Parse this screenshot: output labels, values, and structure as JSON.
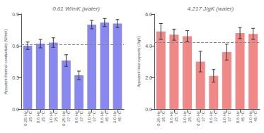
{
  "chart_data": [
    {
      "type": "bar",
      "title": "0.61 W/mK (water)",
      "ylabel": "Apparent thermal conductivity (W/mK)",
      "categories": [
        "0.25 Hz\n25 °C",
        "0.6 Hz\n25 °C",
        "3.0 Hz\n25 °C",
        "0.25 Hz\n37 °C",
        "0.6 Hz\n37 °C",
        "3.0 Hz\n37 °C",
        "0.6 Hz\n45 °C",
        "3.0 Hz\n45 °C"
      ],
      "values": [
        0.6,
        0.62,
        0.63,
        0.46,
        0.32,
        0.8,
        0.82,
        0.81
      ],
      "errors": [
        0.035,
        0.04,
        0.045,
        0.055,
        0.04,
        0.04,
        0.038,
        0.038
      ],
      "reference_line": 0.61,
      "color": "#8888ee",
      "ylim": [
        0.0,
        0.9
      ],
      "yticks": [
        {
          "value": 0.0,
          "label": "0.0"
        },
        0.3,
        0.6,
        0.9
      ],
      "grid": false
    },
    {
      "type": "bar",
      "title": "4.217 J/gK (water)",
      "ylabel": "Apparent heat capacity (J/gK)",
      "categories": [
        "0.25 Hz\n25 °C",
        "0.6 Hz\n25 °C",
        "3.0 Hz\n25 °C",
        "0.25 Hz\n37 °C",
        "0.6 Hz\n37 °C",
        "3.0 Hz\n37 °C",
        "0.6 Hz\n45 °C",
        "3.0 Hz\n45 °C"
      ],
      "values": [
        4.9,
        4.7,
        4.6,
        3.0,
        2.1,
        3.6,
        4.8,
        4.75
      ],
      "errors": [
        0.5,
        0.35,
        0.35,
        0.65,
        0.4,
        0.5,
        0.35,
        0.35
      ],
      "reference_line": 4.217,
      "color": "#f08888",
      "ylim": [
        0.0,
        6.0
      ],
      "yticks": [
        {
          "value": 0.0,
          "label": "0.0"
        },
        {
          "value": 2.0,
          "label": "2.0"
        },
        {
          "value": 4.0,
          "label": "4.0"
        },
        {
          "value": 6.0,
          "label": "6.0"
        }
      ],
      "grid": false
    }
  ]
}
